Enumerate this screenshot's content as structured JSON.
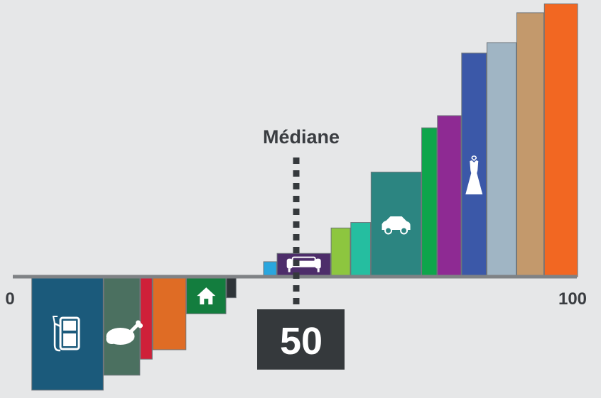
{
  "chart_data": {
    "type": "bar",
    "title": "",
    "xlabel": "",
    "ylabel": "",
    "xlim": [
      0,
      100
    ],
    "baseline": 0,
    "tick_labels": {
      "min": "0",
      "max": "100"
    },
    "median": {
      "label": "Médiane",
      "value": "50",
      "x": 50
    },
    "bars": [
      {
        "x0": 3.0,
        "x1": 15.7,
        "value": -20.5,
        "color": "#1b5a7b",
        "icon": "fuel-pump-icon"
      },
      {
        "x0": 15.8,
        "x1": 22.2,
        "value": -17.8,
        "color": "#4b7060",
        "icon": "chicken-icon"
      },
      {
        "x0": 22.3,
        "x1": 24.4,
        "value": -14.9,
        "color": "#cf2039",
        "icon": ""
      },
      {
        "x0": 24.5,
        "x1": 30.4,
        "value": -13.2,
        "color": "#df6c25",
        "icon": ""
      },
      {
        "x0": 30.5,
        "x1": 37.5,
        "value": -6.7,
        "color": "#137d3e",
        "icon": "house-icon"
      },
      {
        "x0": 37.6,
        "x1": 39.3,
        "value": -3.8,
        "color": "#2e3438",
        "icon": ""
      },
      {
        "x0": 44.2,
        "x1": 46.5,
        "value": 2.7,
        "color": "#2aa6de",
        "icon": ""
      },
      {
        "x0": 46.6,
        "x1": 56.1,
        "value": 4.2,
        "color": "#4d2d6a",
        "icon": "sofa-icon"
      },
      {
        "x0": 56.2,
        "x1": 59.6,
        "value": 8.8,
        "color": "#8dc63f",
        "icon": ""
      },
      {
        "x0": 59.7,
        "x1": 63.2,
        "value": 9.8,
        "color": "#25bea0",
        "icon": ""
      },
      {
        "x0": 63.3,
        "x1": 72.2,
        "value": 18.9,
        "color": "#2c8581",
        "icon": "car-icon"
      },
      {
        "x0": 72.3,
        "x1": 75.0,
        "value": 26.9,
        "color": "#0ea54b",
        "icon": ""
      },
      {
        "x0": 75.1,
        "x1": 79.3,
        "value": 29.1,
        "color": "#8e2a93",
        "icon": ""
      },
      {
        "x0": 79.4,
        "x1": 83.8,
        "value": 40.4,
        "color": "#3b58a8",
        "icon": "dress-icon"
      },
      {
        "x0": 83.9,
        "x1": 89.1,
        "value": 42.3,
        "color": "#a0b5c4",
        "icon": ""
      },
      {
        "x0": 89.2,
        "x1": 94.0,
        "value": 47.7,
        "color": "#c3996c",
        "icon": ""
      },
      {
        "x0": 94.1,
        "x1": 100.0,
        "value": 49.3,
        "color": "#f26722",
        "icon": ""
      }
    ],
    "colors": {
      "background": "#e6e7e8",
      "axis": "#7f8285",
      "text": "#3a3d41",
      "median_box": "#35393c",
      "median_line": "#35393c",
      "bar_edge": "#6d7479",
      "icon": "#ffffff"
    },
    "grid": false,
    "legend": "none"
  }
}
